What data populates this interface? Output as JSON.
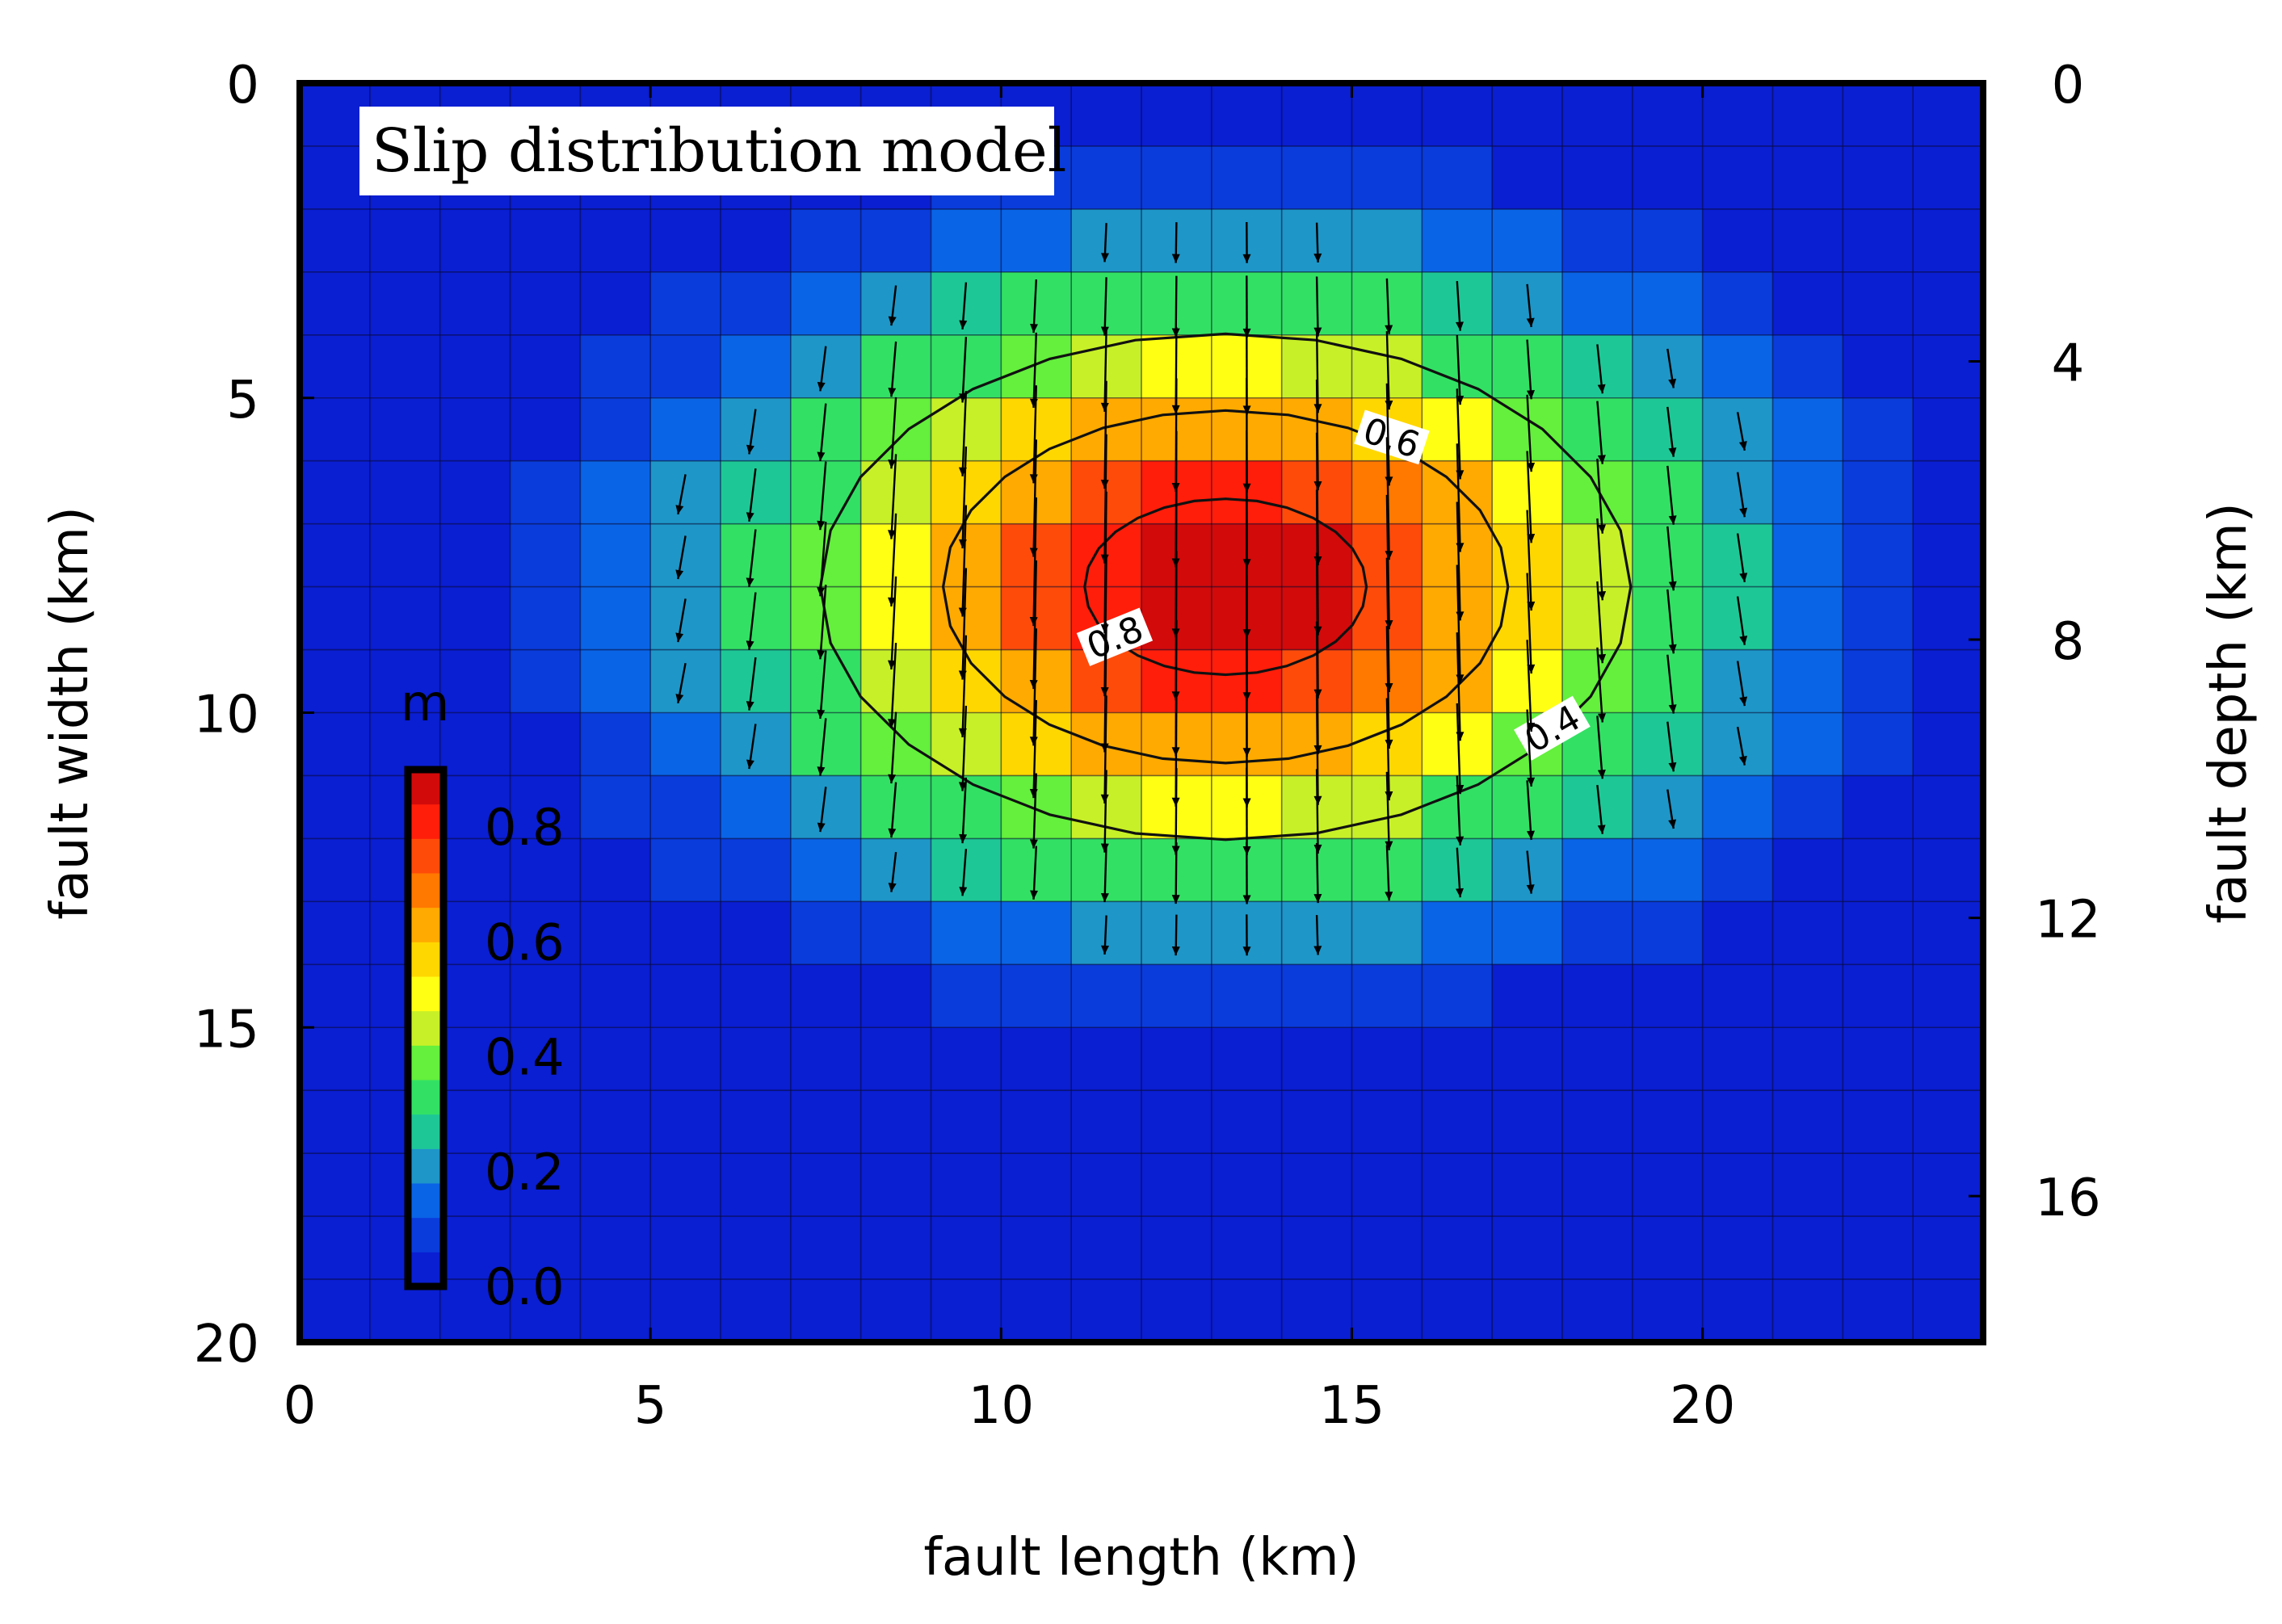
{
  "chart_data": {
    "type": "heatmap",
    "title": "Slip distribution model",
    "xlabel": "fault length (km)",
    "ylabel_left": "fault width (km)",
    "ylabel_right": "fault depth (km)",
    "xlim": [
      0,
      24
    ],
    "ylim_left": [
      0,
      20
    ],
    "ylim_right": [
      0,
      18.1
    ],
    "x_ticks": [
      "0",
      "5",
      "10",
      "15",
      "20"
    ],
    "x_tick_values": [
      0,
      5,
      10,
      15,
      20
    ],
    "y_left_ticks": [
      "0",
      "5",
      "10",
      "15",
      "20"
    ],
    "y_left_tick_values": [
      0,
      5,
      10,
      15,
      20
    ],
    "y_right_ticks": [
      "0",
      "4",
      "8",
      "12",
      "16"
    ],
    "y_right_tick_values": [
      0,
      4,
      8,
      12,
      16
    ],
    "grid": {
      "nx": 24,
      "ny": 20,
      "cell_km_x": 1,
      "cell_km_y": 1
    },
    "colorbar": {
      "unit_label": "m",
      "min": 0.0,
      "max": 0.9,
      "ticks": [
        "0.0",
        "0.2",
        "0.4",
        "0.6",
        "0.8"
      ],
      "tick_values": [
        0.0,
        0.2,
        0.4,
        0.6,
        0.8
      ],
      "position": "lower-left inside plot"
    },
    "slip_model": {
      "shape": "gaussian",
      "peak_slip_m": 0.88,
      "center_x_km": 13.2,
      "center_y_km": 8.0,
      "sigma_x_km": 4.6,
      "sigma_y_km": 3.2,
      "values_note": "cell slip (m) = peak * exp(-0.5*((x-cx)/sx)^2 - 0.5*((y-cy)/sy)^2), quantized to 0.05 m"
    },
    "contours": [
      {
        "level": 0.4,
        "label": "0.4"
      },
      {
        "level": 0.6,
        "label": "0.6"
      },
      {
        "level": 0.8,
        "label": "0.8"
      }
    ],
    "slip_vectors": {
      "threshold_m": 0.18,
      "direction": "down-dip"
    },
    "colors": {
      "scale": [
        "#0a1ed2",
        "#0a3cdc",
        "#0a64e6",
        "#1e96c8",
        "#1ec896",
        "#32e164",
        "#64f03c",
        "#c8f028",
        "#ffff14",
        "#ffd700",
        "#ffaa00",
        "#ff7800",
        "#ff4b0a",
        "#ff1e0a",
        "#d20a0a"
      ],
      "frame": "#000000",
      "grid_lines": "#0a0a30"
    }
  }
}
